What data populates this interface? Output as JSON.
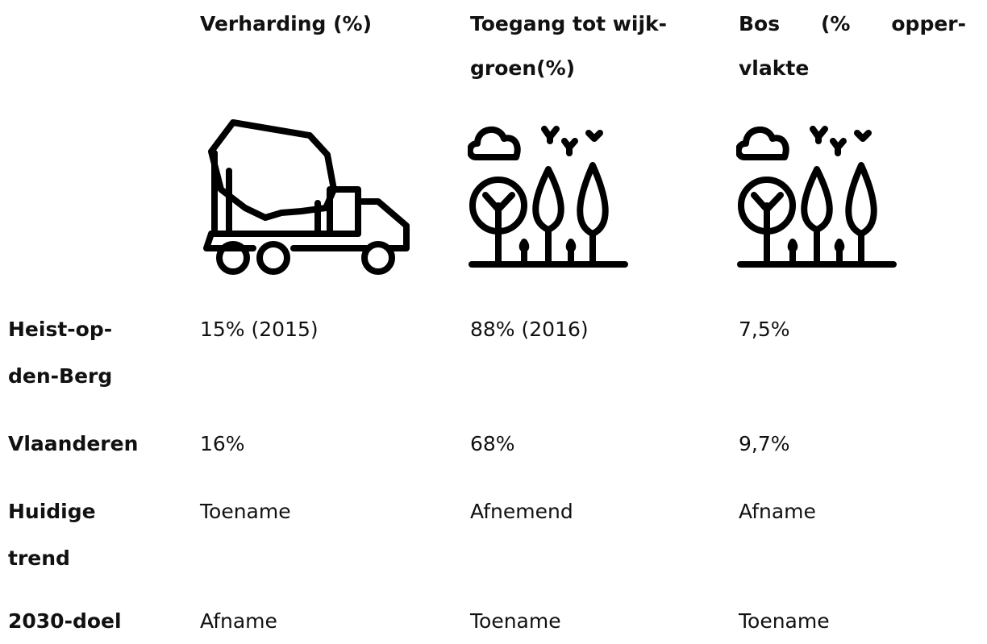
{
  "columns": [
    {
      "lines": [
        "Verharding (%)"
      ]
    },
    {
      "lines": [
        "Toegang tot wijk-",
        "groen(%)"
      ]
    },
    {
      "lines": [
        "Bos (% opper-",
        "vlakte"
      ]
    }
  ],
  "rows": [
    {
      "label": [
        "Heist-op-",
        "den-Berg"
      ],
      "cells": [
        "15% (2015)",
        "88% (2016)",
        "7,5%"
      ]
    },
    {
      "label": [
        "Vlaanderen"
      ],
      "cells": [
        "16%",
        "68%",
        "9,7%"
      ]
    },
    {
      "label": [
        "Huidige",
        "trend"
      ],
      "cells": [
        "Toename",
        "Afnemend",
        "Afname"
      ]
    },
    {
      "label": [
        "2030-doel"
      ],
      "cells": [
        "Afname",
        "Toename",
        "Toename"
      ]
    }
  ]
}
